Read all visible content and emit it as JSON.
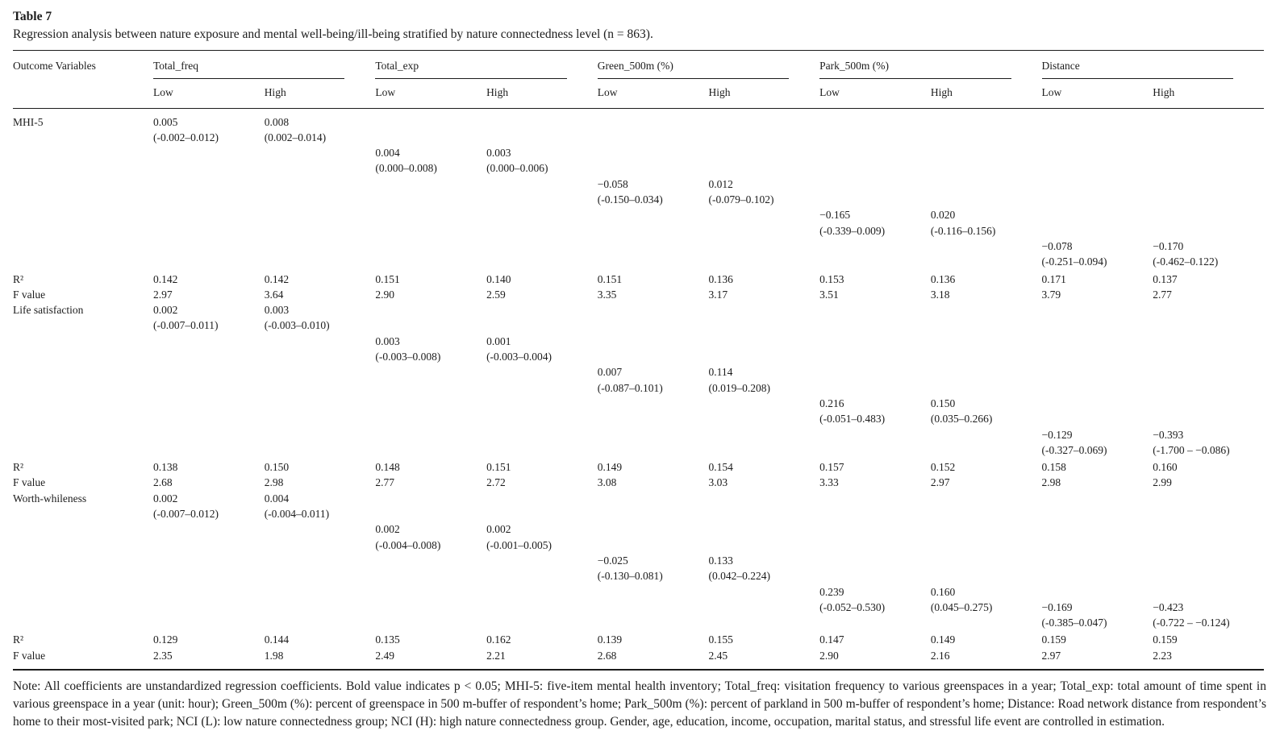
{
  "table": {
    "title": "Table 7",
    "caption": "Regression analysis between nature exposure and mental well-being/ill-being stratified by nature connectedness level (n = 863).",
    "header": {
      "outcome_col": "Outcome Variables",
      "groups": [
        {
          "name": "Total_freq",
          "low": "Low",
          "high": "High"
        },
        {
          "name": "Total_exp",
          "low": "Low",
          "high": "High"
        },
        {
          "name": "Green_500m (%)",
          "low": "Low",
          "high": "High"
        },
        {
          "name": "Park_500m (%)",
          "low": "Low",
          "high": "High"
        },
        {
          "name": "Distance",
          "low": "Low",
          "high": "High"
        }
      ]
    },
    "rows": [
      [
        "MHI-5",
        "0.005",
        "0.008",
        "",
        "",
        "",
        "",
        "",
        "",
        "",
        ""
      ],
      [
        "",
        "(-0.002–0.012)",
        "(0.002–0.014)",
        "",
        "",
        "",
        "",
        "",
        "",
        "",
        ""
      ],
      [
        "",
        "",
        "",
        "0.004",
        "0.003",
        "",
        "",
        "",
        "",
        "",
        ""
      ],
      [
        "",
        "",
        "",
        "(0.000–0.008)",
        "(0.000–0.006)",
        "",
        "",
        "",
        "",
        "",
        ""
      ],
      [
        "",
        "",
        "",
        "",
        "",
        "−0.058",
        "0.012",
        "",
        "",
        "",
        ""
      ],
      [
        "",
        "",
        "",
        "",
        "",
        "(-0.150–0.034)",
        "(-0.079–0.102)",
        "",
        "",
        "",
        ""
      ],
      [
        "",
        "",
        "",
        "",
        "",
        "",
        "",
        "−0.165",
        "0.020",
        "",
        ""
      ],
      [
        "",
        "",
        "",
        "",
        "",
        "",
        "",
        "(-0.339–0.009)",
        "(-0.116–0.156)",
        "",
        ""
      ],
      [
        "",
        "",
        "",
        "",
        "",
        "",
        "",
        "",
        "",
        "−0.078",
        "−0.170"
      ],
      [
        "",
        "",
        "",
        "",
        "",
        "",
        "",
        "",
        "",
        "(-0.251–0.094)",
        "(-0.462–0.122)"
      ],
      [
        "R²",
        "0.142",
        "0.142",
        "0.151",
        "0.140",
        "0.151",
        "0.136",
        "0.153",
        "0.136",
        "0.171",
        "0.137"
      ],
      [
        "F value",
        "2.97",
        "3.64",
        "2.90",
        "2.59",
        "3.35",
        "3.17",
        "3.51",
        "3.18",
        "3.79",
        "2.77"
      ],
      [
        "Life satisfaction",
        "0.002",
        "0.003",
        "",
        "",
        "",
        "",
        "",
        "",
        "",
        ""
      ],
      [
        "",
        "(-0.007–0.011)",
        "(-0.003–0.010)",
        "",
        "",
        "",
        "",
        "",
        "",
        "",
        ""
      ],
      [
        "",
        "",
        "",
        "0.003",
        "0.001",
        "",
        "",
        "",
        "",
        "",
        ""
      ],
      [
        "",
        "",
        "",
        "(-0.003–0.008)",
        "(-0.003–0.004)",
        "",
        "",
        "",
        "",
        "",
        ""
      ],
      [
        "",
        "",
        "",
        "",
        "",
        "0.007",
        "0.114",
        "",
        "",
        "",
        ""
      ],
      [
        "",
        "",
        "",
        "",
        "",
        "(-0.087–0.101)",
        "(0.019–0.208)",
        "",
        "",
        "",
        ""
      ],
      [
        "",
        "",
        "",
        "",
        "",
        "",
        "",
        "0.216",
        "0.150",
        "",
        ""
      ],
      [
        "",
        "",
        "",
        "",
        "",
        "",
        "",
        "(-0.051–0.483)",
        "(0.035–0.266)",
        "",
        ""
      ],
      [
        "",
        "",
        "",
        "",
        "",
        "",
        "",
        "",
        "",
        "−0.129",
        "−0.393"
      ],
      [
        "",
        "",
        "",
        "",
        "",
        "",
        "",
        "",
        "",
        "(-0.327–0.069)",
        "(-1.700 – −0.086)"
      ],
      [
        "R²",
        "0.138",
        "0.150",
        "0.148",
        "0.151",
        "0.149",
        "0.154",
        "0.157",
        "0.152",
        "0.158",
        "0.160"
      ],
      [
        "F value",
        "2.68",
        "2.98",
        "2.77",
        "2.72",
        "3.08",
        "3.03",
        "3.33",
        "2.97",
        "2.98",
        "2.99"
      ],
      [
        "Worth-whileness",
        "0.002",
        "0.004",
        "",
        "",
        "",
        "",
        "",
        "",
        "",
        ""
      ],
      [
        "",
        "(-0.007–0.012)",
        "(-0.004–0.011)",
        "",
        "",
        "",
        "",
        "",
        "",
        "",
        ""
      ],
      [
        "",
        "",
        "",
        "0.002",
        "0.002",
        "",
        "",
        "",
        "",
        "",
        ""
      ],
      [
        "",
        "",
        "",
        "(-0.004–0.008)",
        "(-0.001–0.005)",
        "",
        "",
        "",
        "",
        "",
        ""
      ],
      [
        "",
        "",
        "",
        "",
        "",
        "−0.025",
        "0.133",
        "",
        "",
        "",
        ""
      ],
      [
        "",
        "",
        "",
        "",
        "",
        "(-0.130–0.081)",
        "(0.042–0.224)",
        "",
        "",
        "",
        ""
      ],
      [
        "",
        "",
        "",
        "",
        "",
        "",
        "",
        "0.239",
        "0.160",
        "",
        ""
      ],
      [
        "",
        "",
        "",
        "",
        "",
        "",
        "",
        "(-0.052–0.530)",
        "(0.045–0.275)",
        "−0.169",
        "−0.423"
      ],
      [
        "",
        "",
        "",
        "",
        "",
        "",
        "",
        "",
        "",
        "(-0.385–0.047)",
        "(-0.722 – −0.124)"
      ],
      [
        "R²",
        "0.129",
        "0.144",
        "0.135",
        "0.162",
        "0.139",
        "0.155",
        "0.147",
        "0.149",
        "0.159",
        "0.159"
      ],
      [
        "F value",
        "2.35",
        "1.98",
        "2.49",
        "2.21",
        "2.68",
        "2.45",
        "2.90",
        "2.16",
        "2.97",
        "2.23"
      ]
    ]
  },
  "note": "Note: All coefficients are unstandardized regression coefficients. Bold value indicates p < 0.05; MHI-5: five-item mental health inventory; Total_freq: visitation frequency to various greenspaces in a year; Total_exp: total amount of time spent in various greenspace in a year (unit: hour); Green_500m (%): percent of greenspace in 500 m-buffer of respondent’s home; Park_500m (%): percent of parkland in 500 m-buffer of respondent’s home; Distance: Road network distance from respondent’s home to their most-visited park; NCI (L): low nature connectedness group; NCI (H): high nature connectedness group. Gender, age, education, income, occupation, marital status, and stressful life event are controlled in estimation."
}
